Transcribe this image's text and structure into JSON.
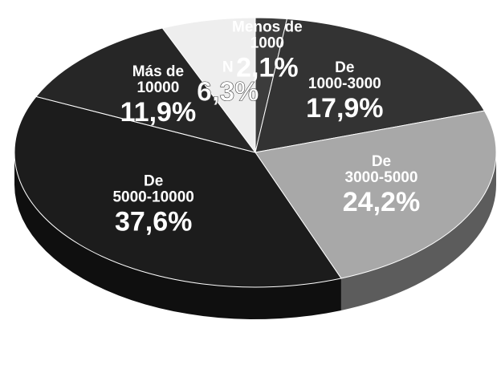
{
  "chart_data": {
    "type": "pie",
    "categories": [
      "Menos de 1000",
      "De 1000-3000",
      "De 3000-5000",
      "De 5000-10000",
      "Más de 10000",
      "N"
    ],
    "values": [
      2.1,
      17.9,
      24.2,
      37.6,
      11.9,
      6.3
    ],
    "value_labels": [
      "2,1%",
      "17,9%",
      "24,2%",
      "37,6%",
      "11,9%",
      "6,3%"
    ],
    "colors": [
      "#3c3c3c",
      "#333333",
      "#a8a8a8",
      "#1c1c1c",
      "#262626",
      "#eeeeee"
    ]
  }
}
